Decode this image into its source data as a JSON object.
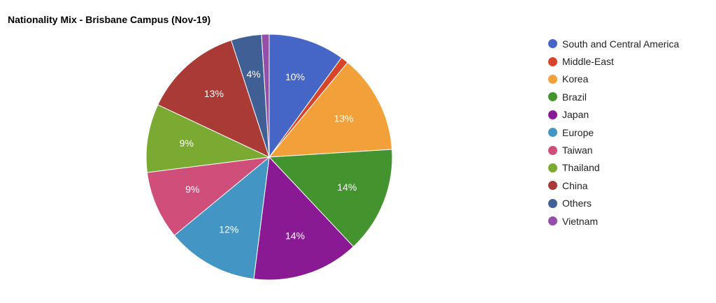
{
  "chart_data": {
    "type": "pie",
    "title": "Nationality Mix - Brisbane Campus (Nov-19)",
    "legend_position": "right",
    "slices": [
      {
        "label": "South and Central America",
        "value": 10,
        "display": "10%",
        "color": "#4666c7"
      },
      {
        "label": "Middle-East",
        "value": 1,
        "display": "",
        "color": "#d6452a"
      },
      {
        "label": "Korea",
        "value": 13,
        "display": "13%",
        "color": "#f2a13a"
      },
      {
        "label": "Brazil",
        "value": 14,
        "display": "14%",
        "color": "#43932f"
      },
      {
        "label": "Japan",
        "value": 14,
        "display": "14%",
        "color": "#8a1a94"
      },
      {
        "label": "Europe",
        "value": 12,
        "display": "12%",
        "color": "#4396c4"
      },
      {
        "label": "Taiwan",
        "value": 9,
        "display": "9%",
        "color": "#d04f7a"
      },
      {
        "label": "Thailand",
        "value": 9,
        "display": "9%",
        "color": "#7aaa32"
      },
      {
        "label": "China",
        "value": 13,
        "display": "13%",
        "color": "#aa3a35"
      },
      {
        "label": "Others",
        "value": 4,
        "display": "4%",
        "color": "#3f5f95"
      },
      {
        "label": "Vietnam",
        "value": 1,
        "display": "",
        "color": "#9450a8"
      }
    ]
  }
}
